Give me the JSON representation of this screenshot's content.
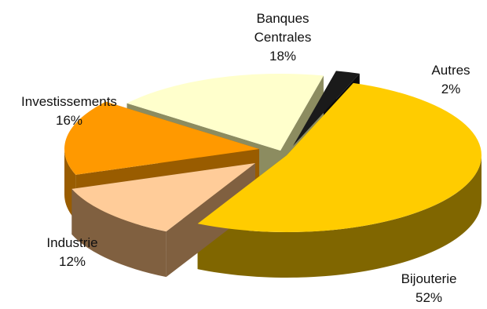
{
  "chart_data": {
    "type": "pie",
    "three_d": true,
    "title": "",
    "legend": "none",
    "slices": [
      {
        "name_lines": [
          "Bijouterie"
        ],
        "value": 52,
        "label": "52%",
        "color": "#ffcc00",
        "side_color": "#806600"
      },
      {
        "name_lines": [
          "Industrie"
        ],
        "value": 12,
        "label": "12%",
        "color": "#ffcc99",
        "side_color": "#806040"
      },
      {
        "name_lines": [
          "Investissements"
        ],
        "value": 16,
        "label": "16%",
        "color": "#ff9900",
        "side_color": "#995c00"
      },
      {
        "name_lines": [
          "Banques",
          "Centrales"
        ],
        "value": 18,
        "label": "18%",
        "color": "#ffffcc",
        "side_color": "#8c8c60"
      },
      {
        "name_lines": [
          "Autres"
        ],
        "value": 2,
        "label": "2%",
        "color": "#1a1a1a",
        "side_color": "#0a0a0a"
      }
    ]
  }
}
